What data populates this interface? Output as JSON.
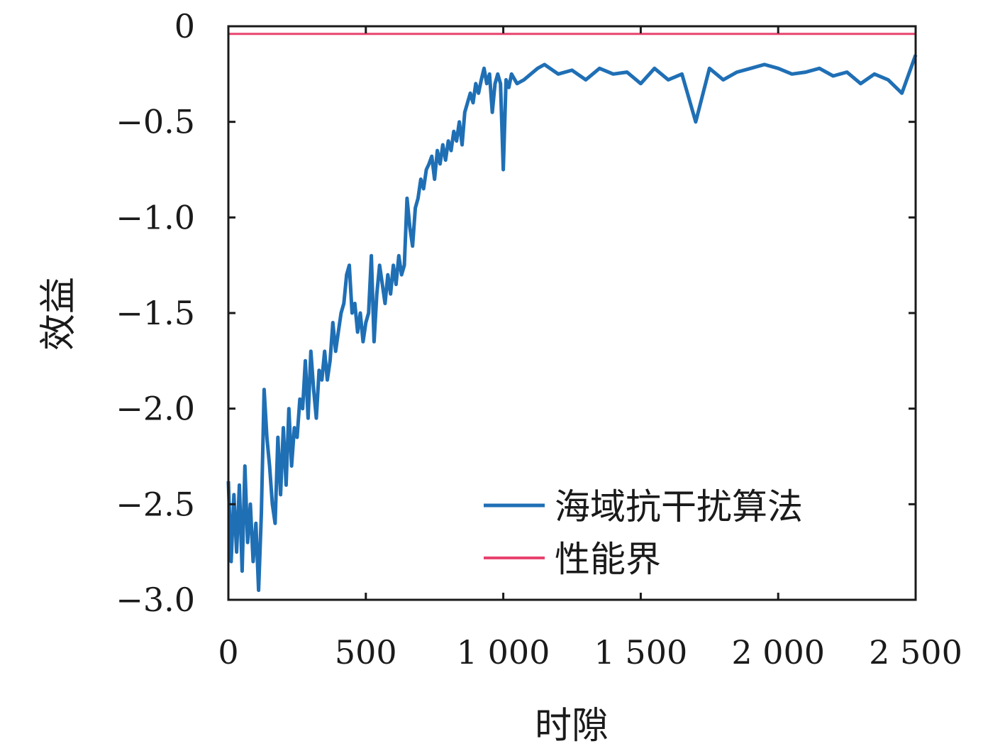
{
  "chart_data": {
    "type": "line",
    "xlabel": "时隙",
    "ylabel": "效益",
    "xlim": [
      0,
      2500
    ],
    "ylim": [
      -3.0,
      0
    ],
    "x_ticks": [
      0,
      500,
      1000,
      1500,
      2000,
      2500
    ],
    "x_tick_labels": [
      "0",
      "500",
      "1 000",
      "1 500",
      "2 000",
      "2 500"
    ],
    "y_ticks": [
      0,
      -0.5,
      -1.0,
      -1.5,
      -2.0,
      -2.5,
      -3.0
    ],
    "y_tick_labels": [
      "0",
      "−0.5",
      "−1.0",
      "−1.5",
      "−2.0",
      "−2.5",
      "−3.0"
    ],
    "grid": false,
    "legend_position": "bottom-right",
    "series": [
      {
        "name": "海域抗干扰算法",
        "color": "#1f6fb5",
        "x": [
          0,
          10,
          20,
          30,
          40,
          50,
          60,
          70,
          80,
          90,
          100,
          110,
          120,
          130,
          140,
          150,
          160,
          170,
          180,
          190,
          200,
          210,
          220,
          230,
          240,
          250,
          260,
          270,
          280,
          290,
          300,
          310,
          320,
          330,
          340,
          350,
          360,
          370,
          380,
          390,
          400,
          410,
          420,
          430,
          440,
          450,
          460,
          470,
          480,
          490,
          500,
          510,
          520,
          530,
          540,
          550,
          560,
          570,
          580,
          590,
          600,
          610,
          620,
          630,
          640,
          650,
          660,
          670,
          680,
          690,
          700,
          710,
          720,
          730,
          740,
          750,
          760,
          770,
          780,
          790,
          800,
          810,
          820,
          830,
          840,
          850,
          860,
          870,
          880,
          890,
          900,
          910,
          920,
          930,
          940,
          950,
          960,
          970,
          980,
          990,
          1000,
          1010,
          1020,
          1030,
          1050,
          1075,
          1100,
          1125,
          1150,
          1200,
          1250,
          1300,
          1350,
          1400,
          1450,
          1500,
          1550,
          1600,
          1650,
          1700,
          1750,
          1800,
          1850,
          1900,
          1950,
          2000,
          2050,
          2100,
          2150,
          2200,
          2250,
          2300,
          2350,
          2400,
          2450,
          2500
        ],
        "y": [
          -2.38,
          -2.8,
          -2.45,
          -2.75,
          -2.4,
          -2.85,
          -2.3,
          -2.7,
          -2.5,
          -2.8,
          -2.6,
          -2.95,
          -2.55,
          -1.9,
          -2.15,
          -2.3,
          -2.5,
          -2.6,
          -2.15,
          -2.45,
          -2.1,
          -2.4,
          -2.0,
          -2.3,
          -2.1,
          -2.15,
          -1.95,
          -2.0,
          -1.75,
          -2.05,
          -1.7,
          -1.9,
          -2.05,
          -1.8,
          -1.85,
          -1.7,
          -1.85,
          -1.75,
          -1.55,
          -1.7,
          -1.6,
          -1.5,
          -1.45,
          -1.3,
          -1.25,
          -1.5,
          -1.45,
          -1.6,
          -1.5,
          -1.65,
          -1.55,
          -1.5,
          -1.2,
          -1.65,
          -1.4,
          -1.25,
          -1.35,
          -1.45,
          -1.3,
          -1.4,
          -1.25,
          -1.35,
          -1.2,
          -1.3,
          -1.25,
          -0.9,
          -1.05,
          -1.15,
          -0.95,
          -0.9,
          -0.8,
          -0.85,
          -0.75,
          -0.72,
          -0.68,
          -0.8,
          -0.65,
          -0.72,
          -0.62,
          -0.7,
          -0.6,
          -0.65,
          -0.55,
          -0.6,
          -0.5,
          -0.62,
          -0.45,
          -0.4,
          -0.35,
          -0.4,
          -0.3,
          -0.35,
          -0.28,
          -0.22,
          -0.3,
          -0.25,
          -0.45,
          -0.3,
          -0.25,
          -0.3,
          -0.75,
          -0.28,
          -0.32,
          -0.25,
          -0.3,
          -0.28,
          -0.25,
          -0.22,
          -0.2,
          -0.25,
          -0.23,
          -0.28,
          -0.22,
          -0.25,
          -0.24,
          -0.3,
          -0.22,
          -0.28,
          -0.25,
          -0.5,
          -0.22,
          -0.28,
          -0.24,
          -0.22,
          -0.2,
          -0.22,
          -0.25,
          -0.24,
          -0.22,
          -0.26,
          -0.24,
          -0.3,
          -0.25,
          -0.28,
          -0.35,
          -0.15
        ]
      },
      {
        "name": "性能界",
        "color": "#e8436f",
        "x": [
          0,
          2500
        ],
        "y": [
          -0.04,
          -0.04
        ]
      }
    ]
  }
}
